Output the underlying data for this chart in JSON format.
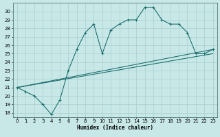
{
  "xlabel": "Humidex (Indice chaleur)",
  "ylabel": "",
  "xlim": [
    -0.5,
    23.5
  ],
  "ylim": [
    17.5,
    31
  ],
  "yticks": [
    18,
    19,
    20,
    21,
    22,
    23,
    24,
    25,
    26,
    27,
    28,
    29,
    30
  ],
  "xticks": [
    0,
    1,
    2,
    3,
    4,
    5,
    6,
    7,
    8,
    9,
    10,
    11,
    12,
    13,
    14,
    15,
    16,
    17,
    18,
    19,
    20,
    21,
    22,
    23
  ],
  "bg_color": "#c8e8e8",
  "grid_color": "#a8cece",
  "line_color": "#1e6e6e",
  "line1_x": [
    0,
    1,
    2,
    3,
    4,
    5,
    6,
    7,
    8,
    9,
    10,
    11,
    12,
    13,
    14,
    15,
    16,
    17,
    18,
    19,
    20,
    21,
    22,
    23
  ],
  "line1_y": [
    21.0,
    20.5,
    20.0,
    19.0,
    17.8,
    19.5,
    23.0,
    25.5,
    27.5,
    28.5,
    25.0,
    27.8,
    28.5,
    29.0,
    29.0,
    30.5,
    30.5,
    29.0,
    28.5,
    28.5,
    27.5,
    25.0,
    25.0,
    25.5
  ],
  "line2_x": [
    0,
    23
  ],
  "line2_y": [
    21.0,
    25.0
  ],
  "line3_x": [
    0,
    23
  ],
  "line3_y": [
    21.0,
    25.5
  ]
}
